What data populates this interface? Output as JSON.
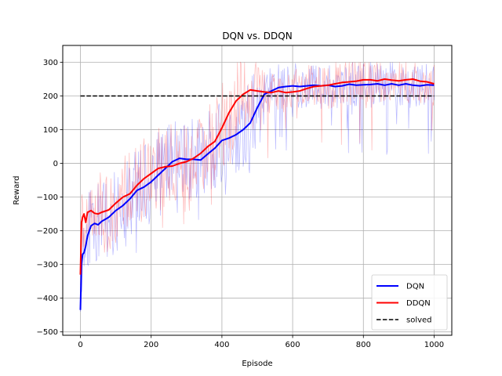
{
  "chart_data": {
    "type": "line",
    "title": "DQN vs. DDQN",
    "xlabel": "Episode",
    "ylabel": "Reward",
    "xlim": [
      -50,
      1050
    ],
    "ylim": [
      -510,
      350
    ],
    "xticks": [
      0,
      200,
      400,
      600,
      800,
      1000
    ],
    "yticks": [
      -500,
      -400,
      -300,
      -200,
      -100,
      0,
      100,
      200,
      300
    ],
    "xtick_labels": [
      "0",
      "200",
      "400",
      "600",
      "800",
      "1000"
    ],
    "ytick_labels": [
      "−500",
      "−400",
      "−300",
      "−200",
      "−100",
      "0",
      "100",
      "200",
      "300"
    ],
    "grid": true,
    "legend": {
      "position": "lower-right",
      "entries": [
        "DQN",
        "DDQN",
        "solved"
      ]
    },
    "colors": {
      "DQN": "#0000ff",
      "DDQN": "#ff0000",
      "solved": "#000000"
    },
    "series": [
      {
        "name": "DQN",
        "style": "solid",
        "smoothed": {
          "x": [
            0,
            3,
            6,
            10,
            15,
            20,
            30,
            40,
            50,
            60,
            80,
            100,
            120,
            140,
            160,
            180,
            200,
            220,
            240,
            260,
            280,
            300,
            320,
            340,
            360,
            380,
            400,
            420,
            440,
            460,
            480,
            500,
            520,
            540,
            560,
            580,
            600,
            620,
            640,
            660,
            680,
            700,
            720,
            740,
            760,
            780,
            800,
            820,
            840,
            860,
            880,
            900,
            920,
            940,
            960,
            980,
            1000
          ],
          "y": [
            -435,
            -300,
            -270,
            -265,
            -245,
            -215,
            -185,
            -178,
            -182,
            -172,
            -160,
            -140,
            -125,
            -105,
            -80,
            -70,
            -55,
            -35,
            -15,
            5,
            15,
            12,
            12,
            10,
            28,
            45,
            68,
            75,
            85,
            100,
            120,
            165,
            205,
            215,
            225,
            228,
            230,
            228,
            230,
            232,
            230,
            232,
            228,
            230,
            235,
            232,
            233,
            234,
            236,
            232,
            236,
            232,
            236,
            232,
            230,
            233,
            232
          ]
        },
        "raw_range": {
          "min": -440,
          "max": 300
        }
      },
      {
        "name": "DDQN",
        "style": "solid",
        "smoothed": {
          "x": [
            0,
            3,
            6,
            10,
            15,
            20,
            30,
            40,
            50,
            60,
            80,
            100,
            120,
            140,
            160,
            180,
            200,
            220,
            240,
            260,
            280,
            300,
            320,
            340,
            360,
            380,
            400,
            420,
            440,
            460,
            480,
            500,
            520,
            540,
            560,
            580,
            600,
            620,
            640,
            660,
            680,
            700,
            720,
            740,
            760,
            780,
            800,
            820,
            840,
            860,
            880,
            900,
            920,
            940,
            960,
            980,
            1000
          ],
          "y": [
            -330,
            -175,
            -160,
            -150,
            -175,
            -145,
            -140,
            -148,
            -150,
            -145,
            -138,
            -118,
            -100,
            -90,
            -65,
            -45,
            -30,
            -15,
            -10,
            -8,
            0,
            5,
            15,
            30,
            50,
            65,
            105,
            150,
            185,
            205,
            218,
            215,
            212,
            210,
            215,
            210,
            212,
            215,
            222,
            228,
            230,
            232,
            236,
            240,
            242,
            244,
            248,
            248,
            245,
            250,
            247,
            245,
            248,
            250,
            244,
            242,
            236
          ]
        },
        "raw_range": {
          "min": -460,
          "max": 300
        }
      },
      {
        "name": "solved",
        "style": "dashed",
        "x": [
          0,
          1000
        ],
        "y": [
          200,
          200
        ]
      }
    ]
  }
}
